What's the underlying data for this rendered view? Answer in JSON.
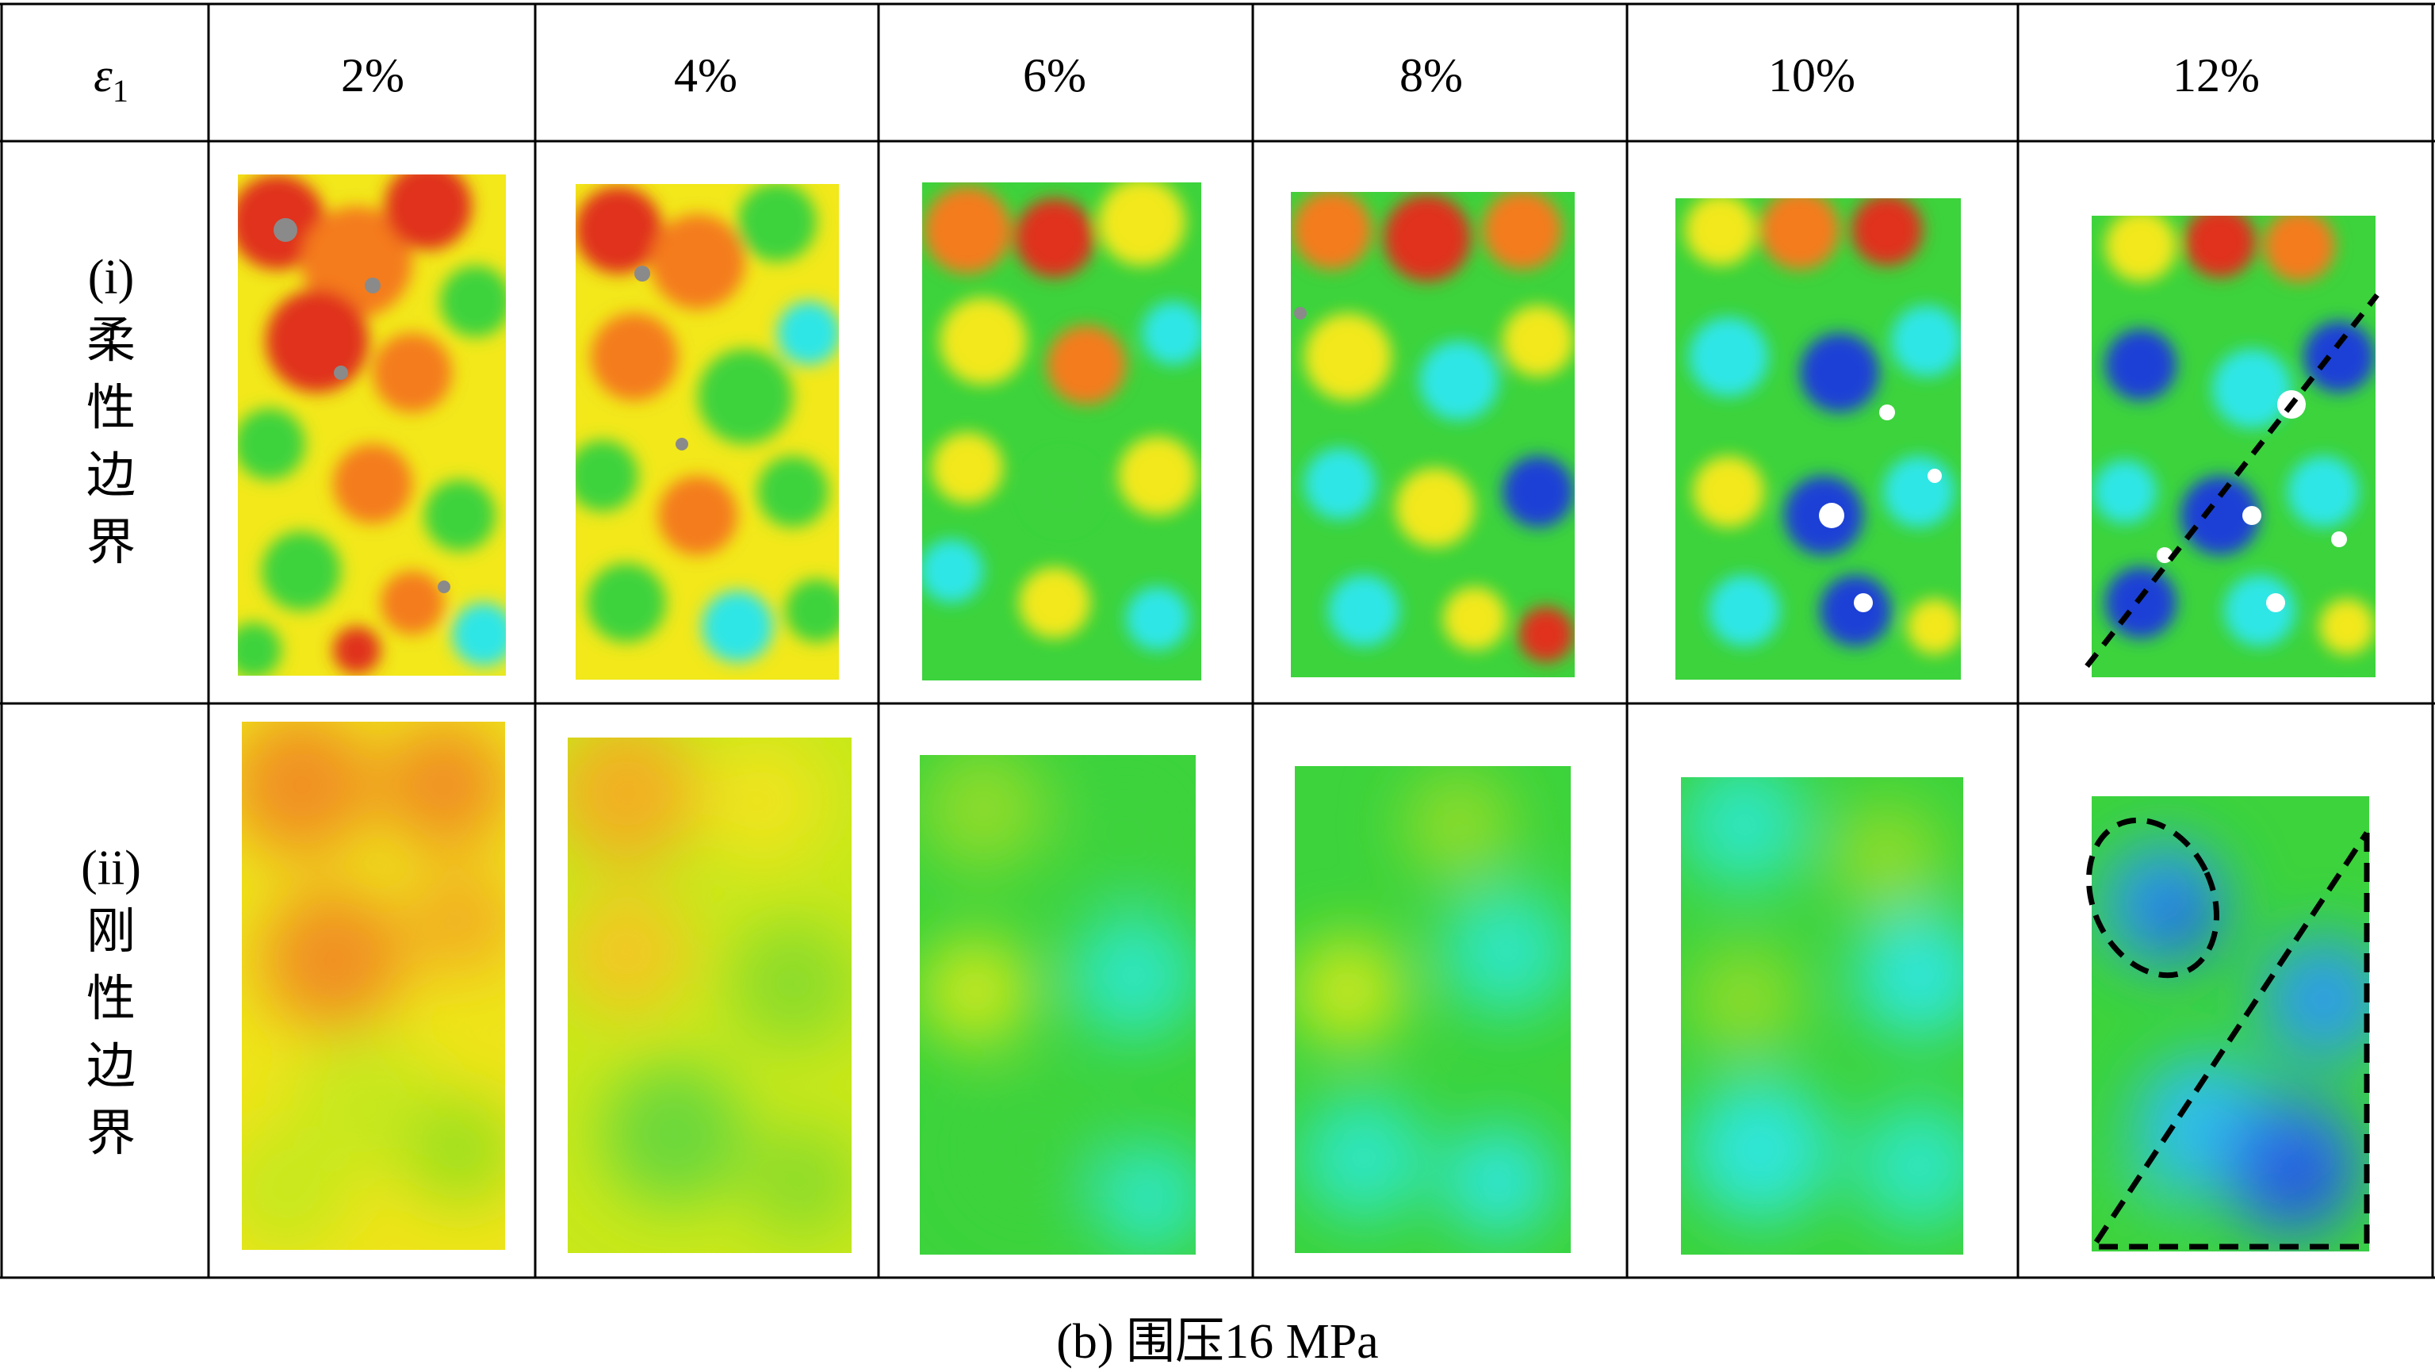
{
  "header": {
    "strain_symbol": "ε",
    "strain_subscript": "1",
    "columns": [
      "2%",
      "4%",
      "6%",
      "8%",
      "10%",
      "12%"
    ]
  },
  "rows": [
    {
      "id": "i",
      "label_index": "(i)",
      "label_chars": [
        "柔",
        "性",
        "边",
        "界"
      ]
    },
    {
      "id": "ii",
      "label_index": "(ii)",
      "label_chars": [
        "刚",
        "性",
        "边",
        "界"
      ]
    }
  ],
  "caption": "(b) 围压16 MPa",
  "colors": {
    "grid": "#000000",
    "red": "#e0301e",
    "orange": "#f47c1c",
    "yellow": "#f2f01a",
    "green": "#3cd33c",
    "cyan": "#2ee6e6",
    "blue": "#1a3fd6",
    "gray": "#8a8a8a",
    "white": "#ffffff"
  }
}
